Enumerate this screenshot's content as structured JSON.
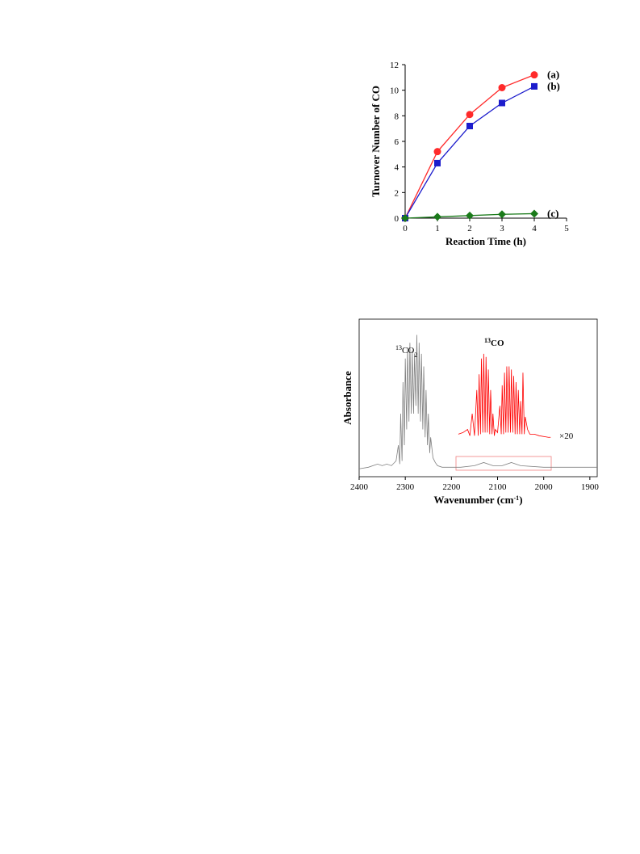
{
  "chart_data": [
    {
      "type": "line",
      "xlabel": "Reaction Time (h)",
      "ylabel": "Turnover Number of CO",
      "x": [
        0,
        1,
        2,
        3,
        4
      ],
      "series": [
        {
          "name": "(a)",
          "color": "#ff2a2a",
          "marker": "circle",
          "values": [
            0,
            5.2,
            8.1,
            10.2,
            11.2
          ]
        },
        {
          "name": "(b)",
          "color": "#1c1ccc",
          "marker": "square",
          "values": [
            0,
            4.3,
            7.2,
            9.0,
            10.3
          ]
        },
        {
          "name": "(c)",
          "color": "#1a7a1a",
          "marker": "diamond",
          "values": [
            0,
            0.1,
            0.2,
            0.3,
            0.35
          ]
        }
      ],
      "xlim": [
        0,
        5
      ],
      "xticks": [
        0,
        1,
        2,
        3,
        4,
        5
      ],
      "ylim": [
        0,
        12
      ],
      "yticks": [
        0,
        2,
        4,
        6,
        8,
        10,
        12
      ]
    },
    {
      "type": "line",
      "xlabel": {
        "text": "Wavenumber (cm",
        "superscript": "-1",
        "end": ")"
      },
      "ylabel": "Absorbance",
      "annotations": [
        {
          "superscript": "13",
          "text": "CO",
          "subscript": "2",
          "color": "#808080"
        },
        {
          "superscript": "13",
          "text": "CO",
          "color": "#ff0000"
        },
        {
          "text": "×20",
          "color": "#ff0000"
        }
      ],
      "series": [
        {
          "color": "#808080",
          "x": [
            2400,
            2380,
            2360,
            2350,
            2340,
            2330,
            2320,
            2315,
            2312,
            2310,
            2307,
            2305,
            2302,
            2300,
            2297,
            2295,
            2292,
            2290,
            2287,
            2285,
            2282,
            2280,
            2277,
            2275,
            2272,
            2270,
            2267,
            2265,
            2262,
            2260,
            2257,
            2255,
            2252,
            2250,
            2247,
            2245,
            2240,
            2235,
            2230,
            2220,
            2180,
            2150,
            2130,
            2110,
            2090,
            2070,
            2050,
            2000,
            1960,
            1900,
            1884
          ],
          "values": [
            0.05,
            0.06,
            0.08,
            0.07,
            0.08,
            0.07,
            0.1,
            0.2,
            0.08,
            0.4,
            0.1,
            0.6,
            0.2,
            0.75,
            0.3,
            0.82,
            0.35,
            0.85,
            0.4,
            0.8,
            0.4,
            0.78,
            0.45,
            0.9,
            0.4,
            0.85,
            0.35,
            0.78,
            0.3,
            0.7,
            0.25,
            0.55,
            0.2,
            0.4,
            0.15,
            0.25,
            0.12,
            0.09,
            0.07,
            0.06,
            0.06,
            0.07,
            0.09,
            0.07,
            0.07,
            0.09,
            0.07,
            0.06,
            0.06,
            0.06,
            0.06
          ]
        },
        {
          "color": "#ff0000",
          "x": [
            2185,
            2175,
            2165,
            2160,
            2155,
            2150,
            2145,
            2142,
            2140,
            2137,
            2135,
            2132,
            2130,
            2127,
            2125,
            2122,
            2120,
            2117,
            2115,
            2112,
            2110,
            2107,
            2105,
            2100,
            2095,
            2092,
            2090,
            2087,
            2085,
            2082,
            2080,
            2077,
            2075,
            2072,
            2070,
            2067,
            2065,
            2062,
            2060,
            2057,
            2055,
            2052,
            2050,
            2047,
            2045,
            2042,
            2040,
            2035,
            2030,
            2020,
            2010,
            1990,
            1985
          ],
          "values": [
            0.27,
            0.28,
            0.3,
            0.26,
            0.4,
            0.26,
            0.55,
            0.26,
            0.65,
            0.27,
            0.75,
            0.28,
            0.78,
            0.28,
            0.76,
            0.28,
            0.68,
            0.27,
            0.55,
            0.27,
            0.4,
            0.26,
            0.3,
            0.28,
            0.45,
            0.27,
            0.58,
            0.27,
            0.66,
            0.28,
            0.7,
            0.28,
            0.7,
            0.28,
            0.68,
            0.28,
            0.64,
            0.27,
            0.6,
            0.27,
            0.55,
            0.27,
            0.48,
            0.27,
            0.66,
            0.27,
            0.38,
            0.3,
            0.27,
            0.27,
            0.26,
            0.25,
            0.25
          ]
        }
      ],
      "xlim": [
        2400,
        1884
      ],
      "xticks": [
        2400,
        2300,
        2200,
        2100,
        2000,
        1900
      ],
      "ylim": [
        0,
        1
      ]
    }
  ]
}
